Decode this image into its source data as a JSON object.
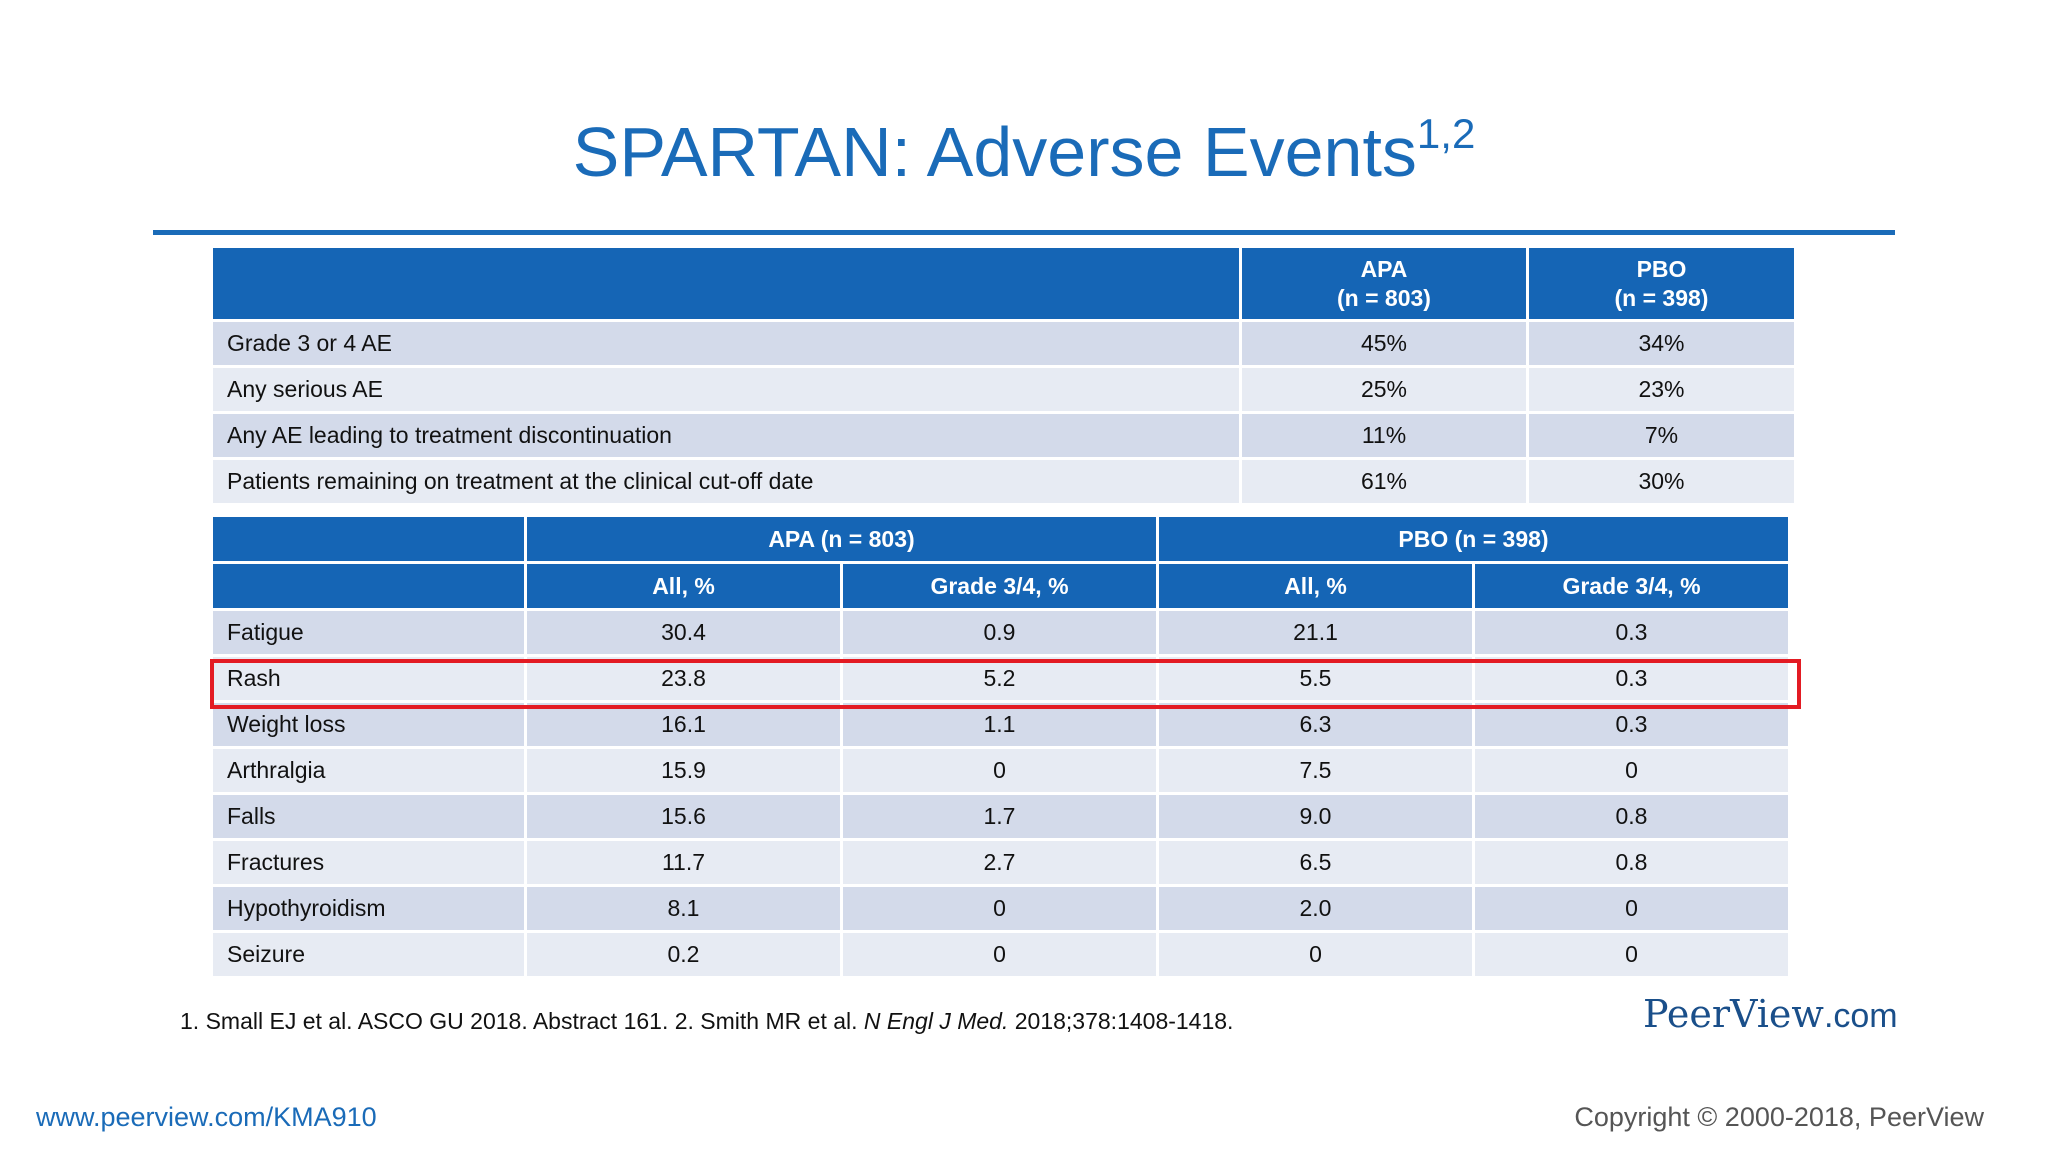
{
  "title": {
    "text": "SPARTAN: Adverse Events",
    "superscript": "1,2"
  },
  "summary_table": {
    "headers": [
      {
        "line1": "",
        "line2": ""
      },
      {
        "line1": "APA",
        "line2": "(n = 803)"
      },
      {
        "line1": "PBO",
        "line2": "(n = 398)"
      }
    ],
    "rows": [
      {
        "label": "Grade 3 or 4 AE",
        "apa": "45%",
        "pbo": "34%"
      },
      {
        "label": "Any serious AE",
        "apa": "25%",
        "pbo": "23%"
      },
      {
        "label": "Any AE leading to treatment discontinuation",
        "apa": "11%",
        "pbo": "7%"
      },
      {
        "label": "Patients remaining on treatment at the clinical cut-off date",
        "apa": "61%",
        "pbo": "30%"
      }
    ]
  },
  "events_table": {
    "group_headers": [
      "APA (n = 803)",
      "PBO (n = 398)"
    ],
    "sub_headers": [
      "All, %",
      "Grade 3/4, %",
      "All, %",
      "Grade 3/4, %"
    ],
    "rows": [
      {
        "label": "Fatigue",
        "apa_all": "30.4",
        "apa_g34": "0.9",
        "pbo_all": "21.1",
        "pbo_g34": "0.3"
      },
      {
        "label": "Rash",
        "apa_all": "23.8",
        "apa_g34": "5.2",
        "pbo_all": "5.5",
        "pbo_g34": "0.3"
      },
      {
        "label": "Weight loss",
        "apa_all": "16.1",
        "apa_g34": "1.1",
        "pbo_all": "6.3",
        "pbo_g34": "0.3"
      },
      {
        "label": "Arthralgia",
        "apa_all": "15.9",
        "apa_g34": "0",
        "pbo_all": "7.5",
        "pbo_g34": "0"
      },
      {
        "label": "Falls",
        "apa_all": "15.6",
        "apa_g34": "1.7",
        "pbo_all": "9.0",
        "pbo_g34": "0.8"
      },
      {
        "label": "Fractures",
        "apa_all": "11.7",
        "apa_g34": "2.7",
        "pbo_all": "6.5",
        "pbo_g34": "0.8"
      },
      {
        "label": "Hypothyroidism",
        "apa_all": "8.1",
        "apa_g34": "0",
        "pbo_all": "2.0",
        "pbo_g34": "0"
      },
      {
        "label": "Seizure",
        "apa_all": "0.2",
        "apa_g34": "0",
        "pbo_all": "0",
        "pbo_g34": "0"
      }
    ]
  },
  "reference": {
    "prefix": "1. Small EJ et al. ASCO GU 2018. Abstract 161. 2. Smith MR et al. ",
    "journal": "N Engl J Med.",
    "suffix": " 2018;378:1408-1418."
  },
  "brand": {
    "name": "PeerView",
    "suffix": ".com"
  },
  "footer": {
    "url": "www.peerview.com/KMA910",
    "copyright": "Copyright © 2000-2018, PeerView"
  },
  "colors": {
    "accent": "#1a6bb8",
    "header_fill": "#1565b5",
    "highlight": "#e31b23"
  }
}
